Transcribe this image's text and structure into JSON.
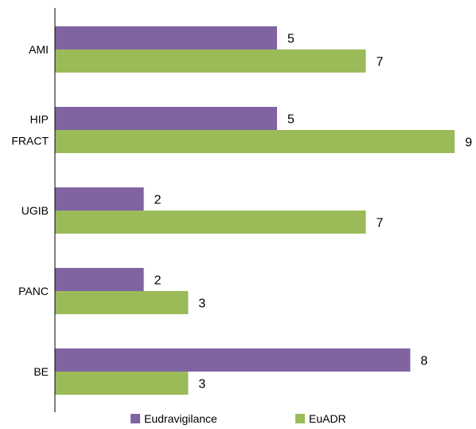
{
  "chart_data": {
    "type": "bar",
    "orientation": "horizontal",
    "categories": [
      [
        "AMI"
      ],
      [
        "HIP",
        "FRACT"
      ],
      [
        "UGIB"
      ],
      [
        "PANC"
      ],
      [
        "BE"
      ]
    ],
    "series": [
      {
        "name": "Eudravigilance",
        "values": [
          5,
          5,
          2,
          2,
          8
        ],
        "color": "#8064A2"
      },
      {
        "name": "EuADR",
        "values": [
          7,
          9,
          7,
          3,
          3
        ],
        "color": "#9BBB59"
      }
    ],
    "xlim": [
      0,
      9
    ],
    "grid": false,
    "legend_position": "bottom"
  }
}
